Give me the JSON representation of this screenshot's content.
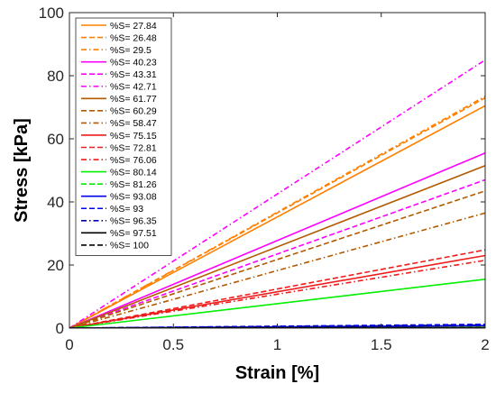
{
  "chart_data": {
    "type": "line",
    "title": "",
    "xlabel": "Strain [%]",
    "ylabel": "Stress [kPa]",
    "xlim": [
      0,
      2
    ],
    "ylim": [
      0,
      100
    ],
    "xticks": [
      "0",
      "0.5",
      "1",
      "1.5",
      "2"
    ],
    "yticks": [
      "0",
      "20",
      "40",
      "60",
      "80",
      "100"
    ],
    "grid": false,
    "legend_position": "top-left",
    "x": [
      0,
      2
    ],
    "series": [
      {
        "name": "%S= 27.84",
        "values": [
          0,
          70.5
        ],
        "color": "#ff8000",
        "dash": "solid"
      },
      {
        "name": "%S= 26.48",
        "values": [
          0,
          73
        ],
        "color": "#ff8000",
        "dash": "dashed"
      },
      {
        "name": "%S= 29.5",
        "values": [
          0,
          73.5
        ],
        "color": "#ff8000",
        "dash": "dashdot"
      },
      {
        "name": "%S= 40.23",
        "values": [
          0,
          55.5
        ],
        "color": "#ff00ff",
        "dash": "solid"
      },
      {
        "name": "%S= 43.31",
        "values": [
          0,
          47
        ],
        "color": "#ff00ff",
        "dash": "dashed"
      },
      {
        "name": "%S= 42.71",
        "values": [
          0,
          85
        ],
        "color": "#ff00ff",
        "dash": "dashdot"
      },
      {
        "name": "%S= 61.77",
        "values": [
          0,
          51.5
        ],
        "color": "#b35900",
        "dash": "solid"
      },
      {
        "name": "%S= 60.29",
        "values": [
          0,
          43.5
        ],
        "color": "#b35900",
        "dash": "dashed"
      },
      {
        "name": "%S= 58.47",
        "values": [
          0,
          36.5
        ],
        "color": "#b35900",
        "dash": "dashdot"
      },
      {
        "name": "%S= 75.15",
        "values": [
          0,
          23
        ],
        "color": "#ee1c1c",
        "dash": "solid"
      },
      {
        "name": "%S= 72.81",
        "values": [
          0,
          24.8
        ],
        "color": "#ee1c1c",
        "dash": "dashed"
      },
      {
        "name": "%S= 76.06",
        "values": [
          0,
          21.5
        ],
        "color": "#ee1c1c",
        "dash": "dashdot"
      },
      {
        "name": "%S= 80.14",
        "values": [
          0,
          15.5
        ],
        "color": "#00ee00",
        "dash": "solid"
      },
      {
        "name": "%S= 81.26",
        "values": [
          0,
          0.3
        ],
        "color": "#00ee00",
        "dash": "dashed"
      },
      {
        "name": "%S= 93.08",
        "values": [
          0,
          0.8
        ],
        "color": "#0000ee",
        "dash": "solid"
      },
      {
        "name": "%S= 93",
        "values": [
          0,
          1.2
        ],
        "color": "#0000ee",
        "dash": "dashed"
      },
      {
        "name": "%S= 96.35",
        "values": [
          0,
          1.0
        ],
        "color": "#0000aa",
        "dash": "dashdot"
      },
      {
        "name": "%S= 97.51",
        "values": [
          0,
          0.2
        ],
        "color": "#000000",
        "dash": "solid"
      },
      {
        "name": "%S= 100",
        "values": [
          0,
          0.1
        ],
        "color": "#000000",
        "dash": "dashed"
      }
    ]
  }
}
